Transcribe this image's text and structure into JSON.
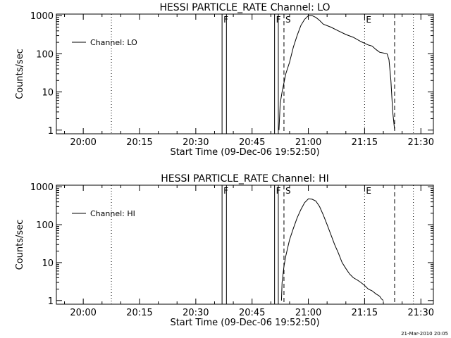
{
  "footer": "21-Mar-2010 20:05",
  "chart_data": [
    {
      "type": "line",
      "title": "HESSI PARTICLE_RATE Channel: LO",
      "xlabel": "Start Time (09-Dec-06 19:52:50)",
      "ylabel": "Counts/sec",
      "log_y": true,
      "grid": false,
      "legend_position": "top-left",
      "xlim": [
        "19:52:50",
        "21:33:20"
      ],
      "ylim": [
        0.8,
        1100
      ],
      "x_ticks": [
        "20:00",
        "20:15",
        "20:30",
        "20:45",
        "21:00",
        "21:15",
        "21:30"
      ],
      "y_ticks": [
        "1",
        "10",
        "100",
        "1000"
      ],
      "series": [
        {
          "name": "Channel: LO",
          "x": [
            "20:52:10",
            "20:52:30",
            "20:53:00",
            "20:54:00",
            "20:55:00",
            "20:56:00",
            "20:57:00",
            "20:58:00",
            "20:59:00",
            "21:00:00",
            "21:01:00",
            "21:02:00",
            "21:03:00",
            "21:04:00",
            "21:06:00",
            "21:08:00",
            "21:10:00",
            "21:12:00",
            "21:14:00",
            "21:16:00",
            "21:17:00",
            "21:18:00",
            "21:19:00",
            "21:20:00",
            "21:21:00",
            "21:21:30",
            "21:22:00",
            "21:22:30",
            "21:23:00"
          ],
          "y": [
            1,
            5,
            10,
            30,
            60,
            150,
            300,
            550,
            800,
            1000,
            1000,
            900,
            750,
            600,
            500,
            400,
            320,
            270,
            210,
            170,
            160,
            130,
            110,
            105,
            100,
            70,
            20,
            3,
            1
          ]
        }
      ],
      "markers": [
        {
          "label": "F",
          "x": "20:37:00",
          "style": "solid"
        },
        {
          "label": "",
          "x": "20:38:10",
          "style": "solid"
        },
        {
          "label": "F",
          "x": "20:51:00",
          "style": "solid"
        },
        {
          "label": "",
          "x": "20:52:00",
          "style": "solid"
        },
        {
          "label": "S",
          "x": "20:53:30",
          "style": "dashed"
        },
        {
          "label": "",
          "x": "21:23:00",
          "style": "dashed"
        },
        {
          "label": "",
          "x": "20:07:30",
          "style": "dotted"
        },
        {
          "label": "E",
          "x": "21:15:00",
          "style": "dotted"
        },
        {
          "label": "",
          "x": "21:28:00",
          "style": "dotted"
        }
      ]
    },
    {
      "type": "line",
      "title": "HESSI PARTICLE_RATE Channel: HI",
      "xlabel": "Start Time (09-Dec-06 19:52:50)",
      "ylabel": "Counts/sec",
      "log_y": true,
      "grid": false,
      "legend_position": "top-left",
      "xlim": [
        "19:52:50",
        "21:33:20"
      ],
      "ylim": [
        0.8,
        1100
      ],
      "x_ticks": [
        "20:00",
        "20:15",
        "20:30",
        "20:45",
        "21:00",
        "21:15",
        "21:30"
      ],
      "y_ticks": [
        "1",
        "10",
        "100",
        "1000"
      ],
      "series": [
        {
          "name": "Channel: HI",
          "x": [
            "20:52:50",
            "20:53:00",
            "20:53:30",
            "20:54:00",
            "20:55:00",
            "20:56:00",
            "20:57:00",
            "20:58:00",
            "20:59:00",
            "21:00:00",
            "21:01:00",
            "21:02:00",
            "21:03:00",
            "21:04:00",
            "21:05:00",
            "21:06:00",
            "21:07:00",
            "21:08:00",
            "21:09:00",
            "21:10:00",
            "21:11:00",
            "21:12:00",
            "21:13:00",
            "21:14:00",
            "21:15:00",
            "21:16:00",
            "21:17:00",
            "21:18:00",
            "21:19:00",
            "21:19:30",
            "21:20:00"
          ],
          "y": [
            1,
            3,
            8,
            15,
            40,
            80,
            150,
            250,
            380,
            480,
            470,
            420,
            300,
            180,
            100,
            55,
            30,
            18,
            10,
            7,
            5,
            4,
            3.5,
            3,
            2.5,
            2,
            1.8,
            1.5,
            1.3,
            1.1,
            1
          ]
        }
      ],
      "markers": [
        {
          "label": "F",
          "x": "20:37:00",
          "style": "solid"
        },
        {
          "label": "",
          "x": "20:38:10",
          "style": "solid"
        },
        {
          "label": "F",
          "x": "20:51:00",
          "style": "solid"
        },
        {
          "label": "",
          "x": "20:52:00",
          "style": "solid"
        },
        {
          "label": "S",
          "x": "20:53:30",
          "style": "dashed"
        },
        {
          "label": "",
          "x": "21:23:00",
          "style": "dashed"
        },
        {
          "label": "",
          "x": "20:07:30",
          "style": "dotted"
        },
        {
          "label": "E",
          "x": "21:15:00",
          "style": "dotted"
        },
        {
          "label": "",
          "x": "21:28:00",
          "style": "dotted"
        }
      ]
    }
  ]
}
